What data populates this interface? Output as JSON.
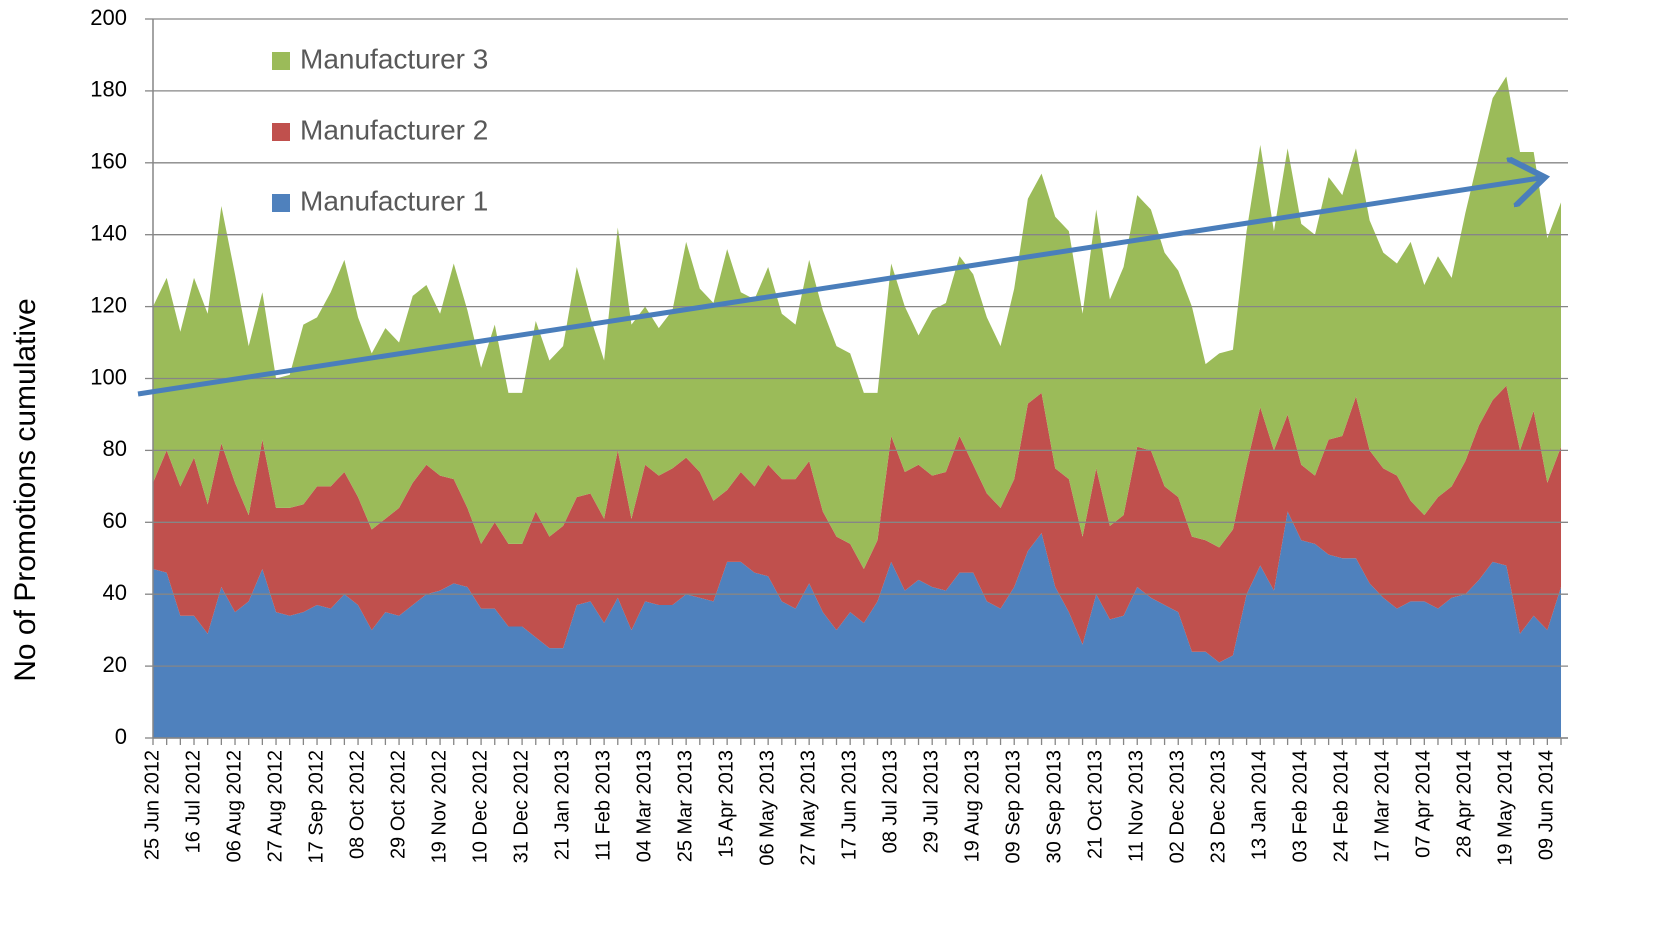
{
  "chart_data": {
    "type": "stacked-area",
    "y_label": "No of Promotions cumulative",
    "categories": [
      "25 Jun 2012",
      null,
      null,
      "16 Jul 2012",
      null,
      null,
      "06 Aug 2012",
      null,
      null,
      "27 Aug 2012",
      null,
      null,
      "17 Sep 2012",
      null,
      null,
      "08 Oct 2012",
      null,
      null,
      "29 Oct 2012",
      null,
      null,
      "19 Nov 2012",
      null,
      null,
      "10 Dec 2012",
      null,
      null,
      "31 Dec 2012",
      null,
      null,
      "21 Jan 2013",
      null,
      null,
      "11 Feb 2013",
      null,
      null,
      "04 Mar 2013",
      null,
      null,
      "25 Mar 2013",
      null,
      null,
      "15 Apr 2013",
      null,
      null,
      "06 May 2013",
      null,
      null,
      "27 May 2013",
      null,
      null,
      "17 Jun 2013",
      null,
      null,
      "08 Jul 2013",
      null,
      null,
      "29 Jul 2013",
      null,
      null,
      "19 Aug 2013",
      null,
      null,
      "09 Sep 2013",
      null,
      null,
      "30 Sep 2013",
      null,
      null,
      "21 Oct 2013",
      null,
      null,
      "11 Nov 2013",
      null,
      null,
      "02 Dec 2013",
      null,
      null,
      "23 Dec 2013",
      null,
      null,
      "13 Jan 2014",
      null,
      null,
      "03 Feb 2014",
      null,
      null,
      "24 Feb 2014",
      null,
      null,
      "17 Mar 2014",
      null,
      null,
      "07 Apr 2014",
      null,
      null,
      "28 Apr 2014",
      null,
      null,
      "19 May 2014",
      null,
      null,
      "09 Jun 2014",
      null
    ],
    "series": [
      {
        "name": "Manufacturer 1",
        "color": "#4f81bd",
        "values": [
          47,
          46,
          34,
          34,
          29,
          42,
          35,
          38,
          47,
          35,
          34,
          35,
          37,
          36,
          40,
          37,
          30,
          35,
          34,
          37,
          40,
          41,
          43,
          42,
          36,
          36,
          31,
          31,
          28,
          25,
          25,
          37,
          38,
          32,
          39,
          30,
          38,
          37,
          37,
          40,
          39,
          38,
          49,
          49,
          46,
          45,
          38,
          36,
          43,
          35,
          30,
          35,
          32,
          38,
          49,
          41,
          44,
          42,
          41,
          46,
          46,
          38,
          36,
          42,
          52,
          57,
          42,
          35,
          26,
          40,
          33,
          34,
          42,
          39,
          37,
          35,
          24,
          24,
          21,
          23,
          40,
          48,
          41,
          63,
          55,
          54,
          51,
          50,
          50,
          43,
          39,
          36,
          38,
          38,
          36,
          39,
          40,
          44,
          49,
          48,
          29,
          34,
          30,
          42
        ]
      },
      {
        "name": "Manufacturer 2",
        "color": "#c0504d",
        "values": [
          24,
          34,
          36,
          44,
          36,
          40,
          36,
          24,
          36,
          29,
          30,
          30,
          33,
          34,
          34,
          30,
          28,
          26,
          30,
          34,
          36,
          32,
          29,
          22,
          18,
          24,
          23,
          23,
          35,
          31,
          34,
          30,
          30,
          29,
          41,
          31,
          38,
          36,
          38,
          38,
          35,
          28,
          20,
          25,
          24,
          31,
          34,
          36,
          34,
          28,
          26,
          19,
          15,
          17,
          35,
          33,
          32,
          31,
          33,
          38,
          30,
          30,
          28,
          30,
          41,
          39,
          33,
          37,
          30,
          35,
          26,
          28,
          39,
          41,
          33,
          32,
          32,
          31,
          32,
          35,
          36,
          44,
          39,
          27,
          21,
          19,
          32,
          34,
          45,
          37,
          36,
          37,
          28,
          24,
          31,
          31,
          37,
          43,
          45,
          50,
          51,
          57,
          41,
          39
        ]
      },
      {
        "name": "Manufacturer 3",
        "color": "#9bbb59",
        "values": [
          49,
          48,
          43,
          50,
          53,
          66,
          58,
          47,
          41,
          36,
          37,
          50,
          47,
          54,
          59,
          50,
          49,
          53,
          46,
          52,
          50,
          45,
          60,
          55,
          49,
          55,
          42,
          42,
          53,
          49,
          50,
          64,
          49,
          44,
          62,
          54,
          44,
          41,
          44,
          60,
          51,
          55,
          67,
          50,
          52,
          55,
          46,
          43,
          56,
          56,
          53,
          53,
          49,
          41,
          48,
          46,
          36,
          46,
          47,
          50,
          53,
          49,
          45,
          53,
          57,
          61,
          70,
          69,
          62,
          72,
          63,
          69,
          70,
          67,
          65,
          63,
          64,
          49,
          54,
          50,
          65,
          73,
          61,
          74,
          67,
          67,
          73,
          67,
          69,
          64,
          60,
          59,
          72,
          64,
          67,
          58,
          69,
          75,
          84,
          86,
          83,
          72,
          68,
          68
        ]
      }
    ],
    "ylim": [
      0,
      200
    ],
    "yticks": [
      0,
      20,
      40,
      60,
      80,
      100,
      120,
      140,
      160,
      180,
      200
    ],
    "grid": true,
    "legend": "upper left"
  }
}
